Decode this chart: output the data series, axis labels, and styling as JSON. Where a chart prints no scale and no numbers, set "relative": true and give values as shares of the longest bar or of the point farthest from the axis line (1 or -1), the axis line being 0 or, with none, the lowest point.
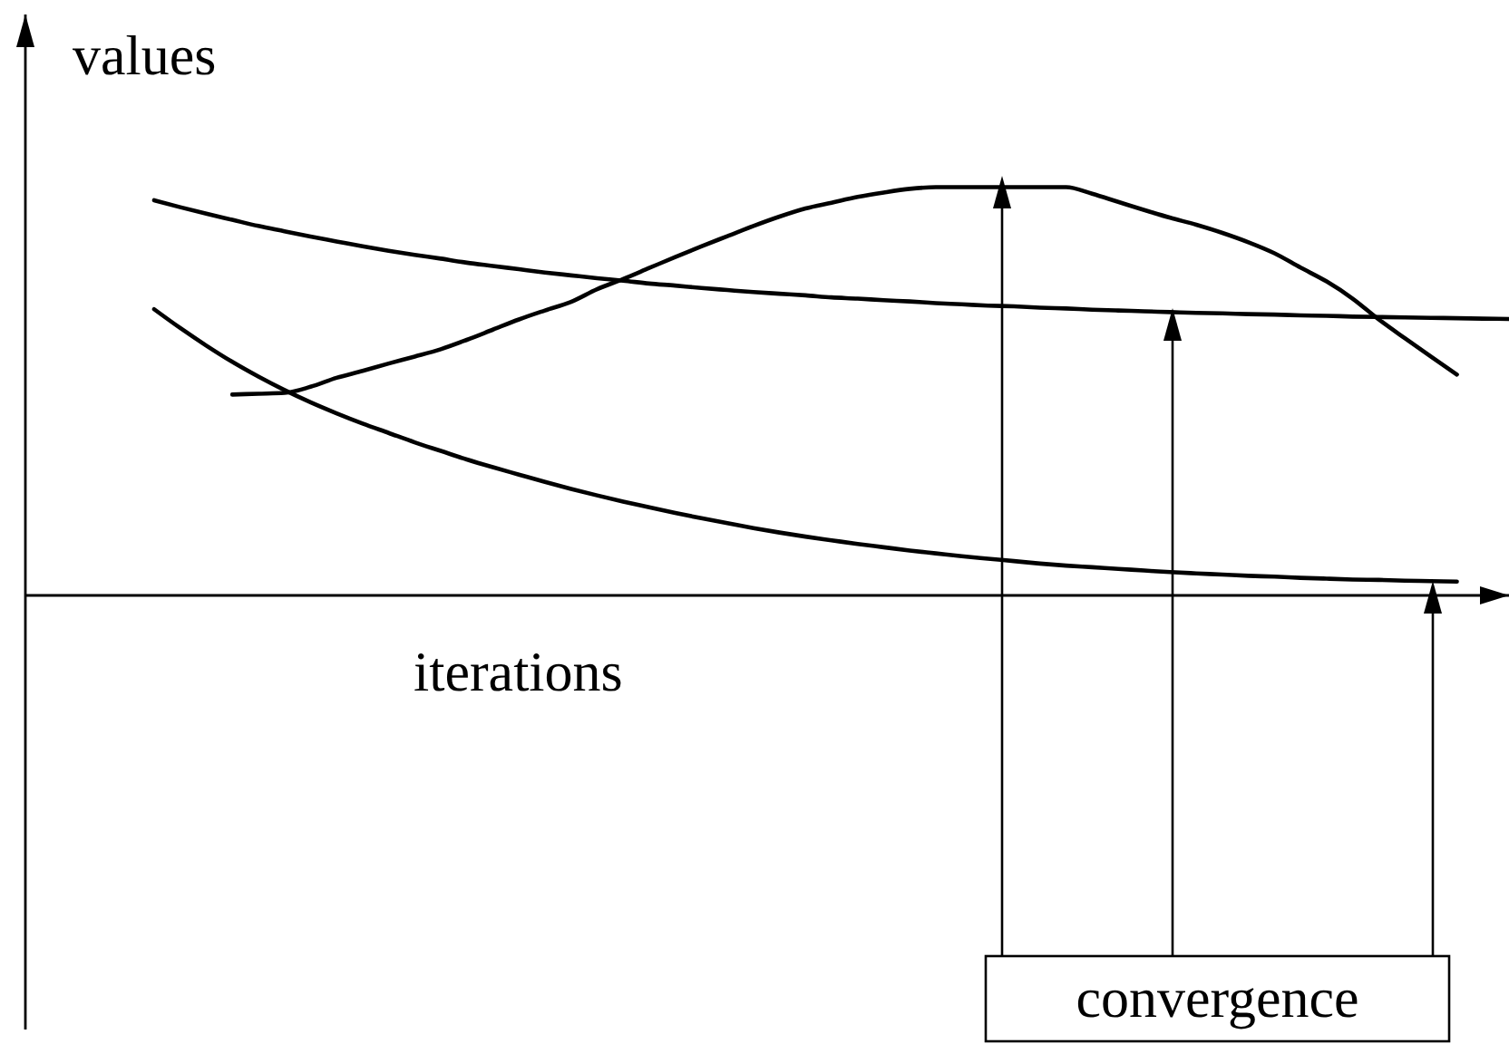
{
  "chart_data": {
    "type": "line",
    "xlabel": "iterations",
    "ylabel": "values",
    "annotations": [
      "convergence"
    ],
    "relative": true,
    "categories": [
      null,
      null,
      null,
      null,
      null,
      null,
      null,
      null,
      null,
      null,
      null,
      null,
      null,
      null,
      null,
      null,
      null,
      null,
      null,
      null,
      null,
      null,
      null,
      null,
      null,
      null,
      null,
      null,
      null,
      null,
      null,
      null,
      null,
      null,
      null,
      null,
      null,
      null,
      null,
      null,
      null,
      null,
      null,
      null,
      null,
      null,
      null,
      null,
      null,
      null,
      null,
      null,
      null
    ],
    "series": [
      {
        "color": "#000000",
        "values": [
          0.968,
          0.951,
          0.935,
          0.92,
          0.905,
          0.892,
          0.879,
          0.867,
          0.855,
          0.844,
          0.834,
          0.825,
          0.815,
          0.807,
          0.799,
          0.791,
          0.784,
          0.777,
          0.771,
          0.764,
          0.759,
          0.753,
          0.748,
          0.743,
          0.739,
          0.735,
          0.73,
          0.727,
          0.723,
          0.72,
          0.716,
          0.713,
          0.71,
          0.708,
          0.705,
          0.703,
          0.7,
          0.698,
          0.696,
          0.694,
          0.692,
          0.691,
          0.689,
          0.688,
          0.686,
          0.685,
          0.683,
          0.682,
          0.681,
          0.68,
          0.679,
          0.678,
          0.677
        ]
      },
      {
        "color": "#000000",
        "values": [
          0.701,
          0.655,
          0.612,
          0.572,
          0.536,
          0.503,
          0.473,
          0.446,
          0.421,
          0.398,
          0.375,
          0.354,
          0.333,
          0.314,
          0.296,
          0.278,
          0.261,
          0.245,
          0.23,
          0.216,
          0.202,
          0.189,
          0.177,
          0.165,
          0.154,
          0.144,
          0.135,
          0.126,
          0.118,
          0.11,
          0.103,
          0.096,
          0.09,
          0.084,
          0.078,
          0.073,
          0.069,
          0.065,
          0.061,
          0.057,
          0.054,
          0.051,
          0.048,
          0.046,
          0.043,
          0.041,
          0.039,
          0.038,
          0.036,
          0.035,
          0.034,
          null,
          null
        ]
      },
      {
        "color": "#000000",
        "values": [
          null,
          null,
          null,
          0.492,
          0.494,
          0.496,
          0.511,
          0.533,
          0.55,
          0.568,
          0.585,
          0.603,
          0.626,
          0.651,
          0.676,
          0.698,
          0.719,
          0.75,
          0.775,
          0.802,
          0.829,
          0.855,
          0.88,
          0.905,
          0.928,
          0.948,
          0.962,
          0.976,
          0.987,
          0.996,
          1.0,
          1.0,
          1.0,
          1.0,
          1.0,
          1.0,
          0.984,
          0.964,
          0.944,
          0.925,
          0.908,
          0.888,
          0.865,
          0.838,
          0.803,
          0.769,
          0.727,
          0.676,
          0.63,
          0.585,
          0.541,
          null,
          null
        ]
      }
    ]
  }
}
